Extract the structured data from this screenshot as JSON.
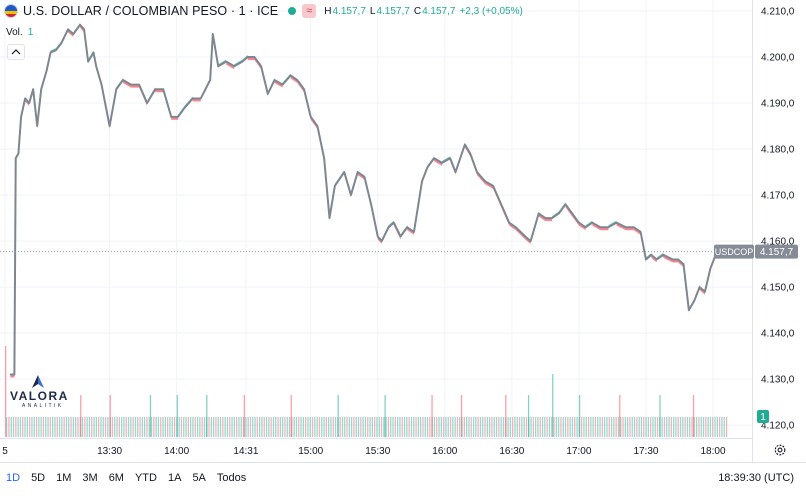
{
  "legend": {
    "symbol_title": "U.S. DOLLAR / COLOMBIAN PESO · 1 · ICE",
    "status_icon": "≈",
    "high_key": "H",
    "high": "4.157,7",
    "low_key": "L",
    "low": "4.157,7",
    "close_key": "C",
    "close": "4.157,7",
    "change": "+2,3 (+0,05%)"
  },
  "volume_label": {
    "key": "Vol.",
    "value": "1"
  },
  "logo": {
    "name": "VALORA",
    "sub": "ANALITIK"
  },
  "bottom_bar": {
    "ranges": [
      "1D",
      "5D",
      "1M",
      "3M",
      "6M",
      "YTD",
      "1A",
      "5A",
      "Todos"
    ],
    "active_range": "1D",
    "clock": "18:39:30 (UTC)"
  },
  "colors": {
    "line": "#7e8690",
    "up": "#22ab94",
    "down": "#f7525f",
    "label_bg": "#868b98",
    "grid": "#f0f3fa",
    "axis_text": "#131722"
  },
  "chart_data": {
    "type": "line",
    "title": "U.S. DOLLAR / COLOMBIAN PESO · 1 · ICE",
    "y_ticks": [
      {
        "value": 4210,
        "label": "4.210,0"
      },
      {
        "value": 4200,
        "label": "4.200,0"
      },
      {
        "value": 4190,
        "label": "4.190,0"
      },
      {
        "value": 4180,
        "label": "4.180,0"
      },
      {
        "value": 4170,
        "label": "4.170,0"
      },
      {
        "value": 4160,
        "label": "4.160,0"
      },
      {
        "value": 4150,
        "label": "4.150,0"
      },
      {
        "value": 4140,
        "label": "4.140,0"
      },
      {
        "value": 4130,
        "label": "4.130,0"
      },
      {
        "value": 4120,
        "label": "4.120,0"
      }
    ],
    "ylim": [
      4117.2,
      4212.4
    ],
    "x_ticks": [
      {
        "t": 12.72,
        "label": "5"
      },
      {
        "t": 13.5,
        "label": "13:30"
      },
      {
        "t": 14.0,
        "label": "14:00"
      },
      {
        "t": 14.5167,
        "label": "14:31"
      },
      {
        "t": 15.0,
        "label": "15:00"
      },
      {
        "t": 15.5,
        "label": "15:30"
      },
      {
        "t": 16.0,
        "label": "16:00"
      },
      {
        "t": 16.5,
        "label": "16:30"
      },
      {
        "t": 17.0,
        "label": "17:00"
      },
      {
        "t": 17.5,
        "label": "17:30"
      },
      {
        "t": 18.0,
        "label": "18:00"
      }
    ],
    "last_price": {
      "value": 4157.7,
      "symbol": "USDCOP",
      "label": "4.157,7"
    },
    "volume_badge": "1",
    "series": [
      {
        "points": [
          [
            12.76,
            4131
          ],
          [
            12.79,
            4131
          ],
          [
            12.8,
            4178
          ],
          [
            12.82,
            4179
          ],
          [
            12.84,
            4187
          ],
          [
            12.87,
            4191
          ],
          [
            12.9,
            4190
          ],
          [
            12.93,
            4193
          ],
          [
            12.96,
            4185
          ],
          [
            12.99,
            4193
          ],
          [
            13.03,
            4197
          ],
          [
            13.06,
            4201
          ],
          [
            13.1,
            4201.5
          ],
          [
            13.14,
            4203
          ],
          [
            13.19,
            4206
          ],
          [
            13.23,
            4205
          ],
          [
            13.28,
            4207
          ],
          [
            13.31,
            4206
          ],
          [
            13.34,
            4199
          ],
          [
            13.38,
            4201
          ],
          [
            13.4,
            4198
          ],
          [
            13.44,
            4194
          ],
          [
            13.5,
            4185
          ],
          [
            13.55,
            4193
          ],
          [
            13.6,
            4195
          ],
          [
            13.66,
            4194
          ],
          [
            13.72,
            4194
          ],
          [
            13.78,
            4190
          ],
          [
            13.84,
            4193
          ],
          [
            13.9,
            4193
          ],
          [
            13.96,
            4187
          ],
          [
            14.01,
            4187
          ],
          [
            14.06,
            4189
          ],
          [
            14.12,
            4191
          ],
          [
            14.18,
            4191
          ],
          [
            14.25,
            4195
          ],
          [
            14.27,
            4205
          ],
          [
            14.31,
            4198
          ],
          [
            14.37,
            4199
          ],
          [
            14.43,
            4198
          ],
          [
            14.49,
            4199
          ],
          [
            14.53,
            4200
          ],
          [
            14.58,
            4200
          ],
          [
            14.63,
            4198
          ],
          [
            14.68,
            4192
          ],
          [
            14.73,
            4195
          ],
          [
            14.79,
            4194
          ],
          [
            14.85,
            4196
          ],
          [
            14.9,
            4195
          ],
          [
            14.95,
            4193
          ],
          [
            15.0,
            4187
          ],
          [
            15.05,
            4185
          ],
          [
            15.1,
            4178
          ],
          [
            15.14,
            4165
          ],
          [
            15.18,
            4172
          ],
          [
            15.25,
            4175
          ],
          [
            15.3,
            4170
          ],
          [
            15.35,
            4175
          ],
          [
            15.4,
            4174
          ],
          [
            15.45,
            4168
          ],
          [
            15.5,
            4161
          ],
          [
            15.53,
            4160
          ],
          [
            15.58,
            4163
          ],
          [
            15.62,
            4164
          ],
          [
            15.67,
            4161
          ],
          [
            15.72,
            4163
          ],
          [
            15.77,
            4162
          ],
          [
            15.83,
            4173
          ],
          [
            15.87,
            4176
          ],
          [
            15.92,
            4178
          ],
          [
            15.98,
            4177
          ],
          [
            16.04,
            4178
          ],
          [
            16.08,
            4175
          ],
          [
            16.15,
            4181
          ],
          [
            16.19,
            4179
          ],
          [
            16.24,
            4175
          ],
          [
            16.3,
            4173
          ],
          [
            16.36,
            4172
          ],
          [
            16.42,
            4168
          ],
          [
            16.48,
            4164
          ],
          [
            16.53,
            4163
          ],
          [
            16.6,
            4161
          ],
          [
            16.64,
            4160
          ],
          [
            16.7,
            4166
          ],
          [
            16.75,
            4165
          ],
          [
            16.8,
            4165
          ],
          [
            16.85,
            4166
          ],
          [
            16.9,
            4168
          ],
          [
            16.95,
            4166
          ],
          [
            17.0,
            4164
          ],
          [
            17.05,
            4163
          ],
          [
            17.1,
            4164
          ],
          [
            17.16,
            4163
          ],
          [
            17.22,
            4163
          ],
          [
            17.28,
            4164
          ],
          [
            17.35,
            4163
          ],
          [
            17.41,
            4163
          ],
          [
            17.46,
            4162
          ],
          [
            17.5,
            4156
          ],
          [
            17.54,
            4157
          ],
          [
            17.58,
            4156
          ],
          [
            17.63,
            4157
          ],
          [
            17.7,
            4156
          ],
          [
            17.74,
            4156
          ],
          [
            17.78,
            4155
          ],
          [
            17.82,
            4145
          ],
          [
            17.86,
            4147
          ],
          [
            17.9,
            4150
          ],
          [
            17.94,
            4149
          ],
          [
            17.98,
            4154
          ],
          [
            18.02,
            4157
          ],
          [
            18.04,
            4157.7
          ]
        ]
      }
    ],
    "volume": [
      [
        12.72,
        13
      ],
      [
        13.28,
        6
      ],
      [
        13.5,
        6
      ],
      [
        13.8,
        6
      ],
      [
        14.0,
        6
      ],
      [
        14.22,
        6
      ],
      [
        14.5,
        6
      ],
      [
        14.85,
        6
      ],
      [
        15.2,
        6
      ],
      [
        15.55,
        6
      ],
      [
        15.9,
        6
      ],
      [
        16.12,
        6
      ],
      [
        16.45,
        6
      ],
      [
        16.62,
        6
      ],
      [
        16.8,
        9
      ],
      [
        17.0,
        6
      ],
      [
        17.3,
        6
      ],
      [
        17.6,
        6
      ],
      [
        17.85,
        6
      ]
    ]
  }
}
